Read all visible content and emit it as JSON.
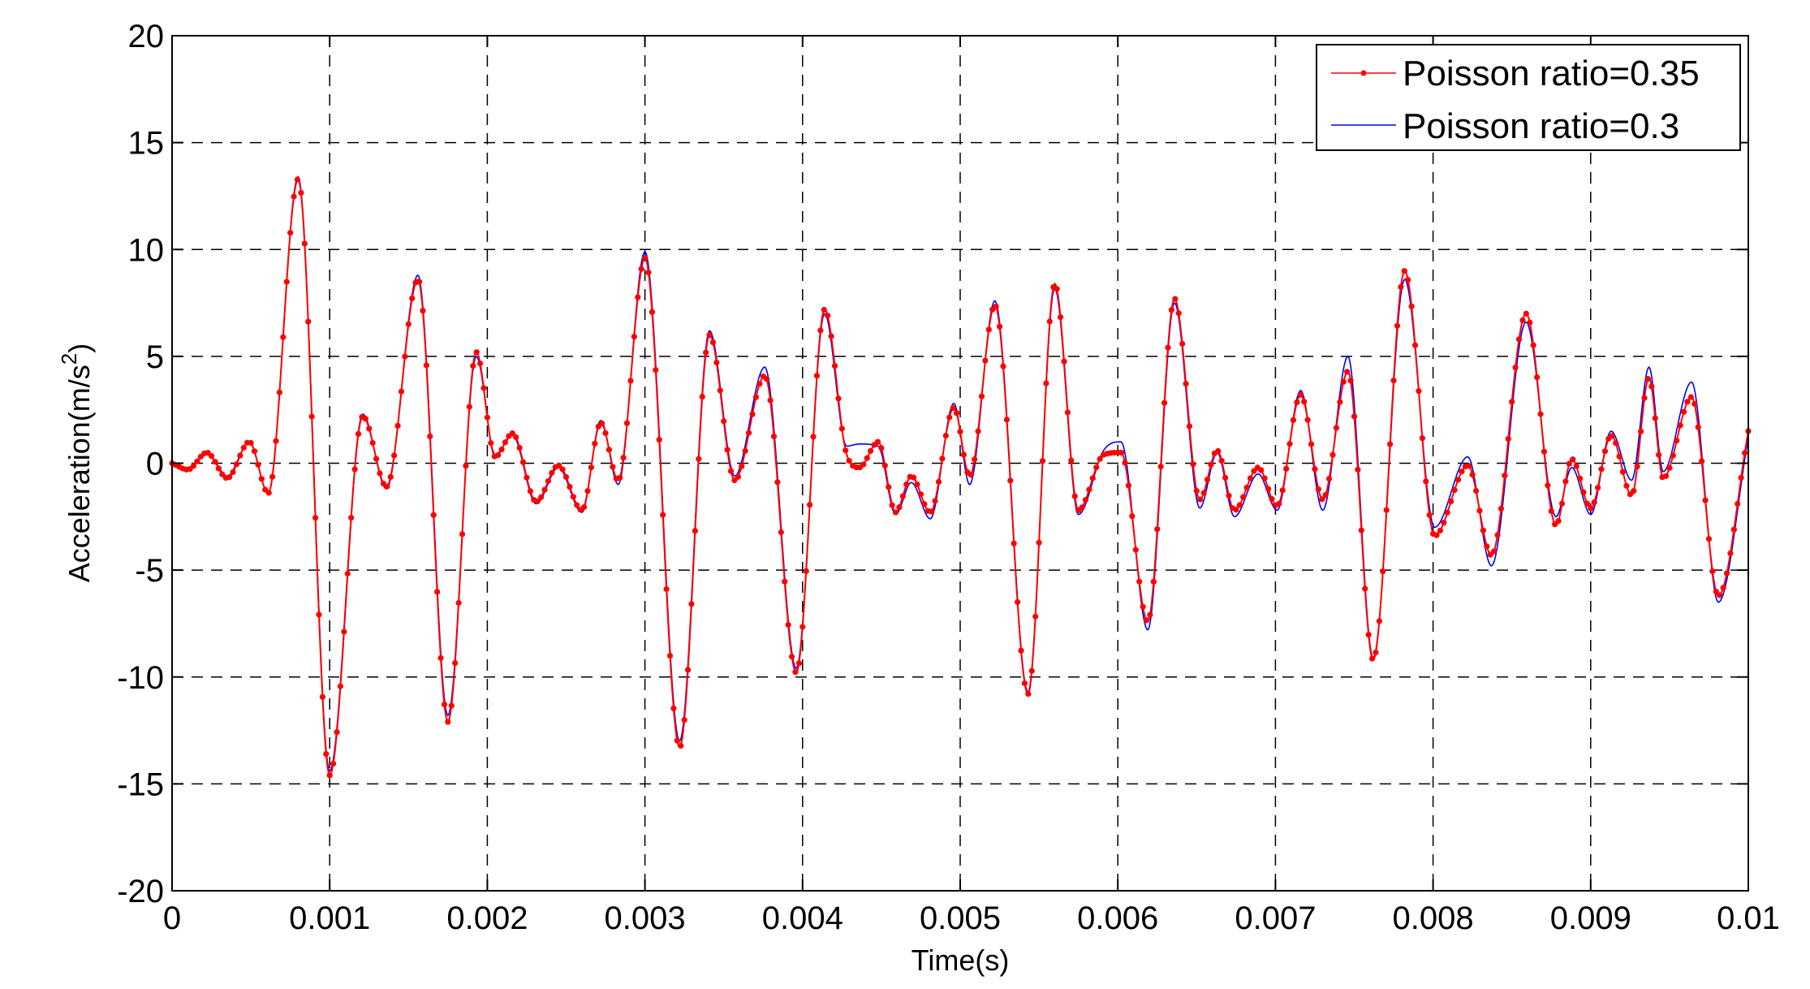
{
  "chart_data": {
    "type": "line",
    "xlabel": "Time(s)",
    "ylabel": "Acceleration(m/s",
    "ylabel_sup": "2",
    "ylabel_close": ")",
    "xlim": [
      0,
      0.01
    ],
    "ylim": [
      -20,
      20
    ],
    "xticks": [
      0,
      0.001,
      0.002,
      0.003,
      0.004,
      0.005,
      0.006,
      0.007,
      0.008,
      0.009,
      0.01
    ],
    "xtick_labels": [
      "0",
      "0.001",
      "0.002",
      "0.003",
      "0.004",
      "0.005",
      "0.006",
      "0.007",
      "0.008",
      "0.009",
      "0.01"
    ],
    "yticks": [
      -20,
      -15,
      -10,
      -5,
      0,
      5,
      10,
      15,
      20
    ],
    "ytick_labels": [
      "-20",
      "-15",
      "-10",
      "-5",
      "0",
      "5",
      "10",
      "15",
      "20"
    ],
    "grid": true,
    "legend_position": "top-right",
    "series": [
      {
        "name": "Poisson ratio=0.35",
        "color": "#ff0000",
        "marker": "dot",
        "x": [
          0,
          0.0001,
          0.00022,
          0.00035,
          0.00049,
          0.00061,
          0.0008,
          0.001,
          0.00121,
          0.00136,
          0.00156,
          0.00175,
          0.00193,
          0.00205,
          0.00216,
          0.00231,
          0.00245,
          0.0026,
          0.00272,
          0.00283,
          0.003,
          0.00322,
          0.00341,
          0.00357,
          0.00376,
          0.00396,
          0.00414,
          0.00428,
          0.00436,
          0.00448,
          0.00459,
          0.00469,
          0.00481,
          0.00496,
          0.00506,
          0.00522,
          0.00543,
          0.0056,
          0.00575,
          0.00591,
          0.00602,
          0.00619,
          0.00636,
          0.00652,
          0.00663,
          0.00674,
          0.00689,
          0.00701,
          0.00716,
          0.0073,
          0.00746,
          0.00762,
          0.00782,
          0.00801,
          0.00822,
          0.00837,
          0.00859,
          0.00878,
          0.00888,
          0.009,
          0.00913,
          0.00926,
          0.00937,
          0.00946,
          0.00964,
          0.00981,
          0.01
        ],
        "y": [
          0,
          -0.3,
          0.5,
          -0.7,
          1.0,
          -1.4,
          13.3,
          -14.6,
          2.2,
          -1.1,
          8.6,
          -12.1,
          5.2,
          0.3,
          1.4,
          -1.8,
          -0.1,
          -2.2,
          1.9,
          -0.8,
          9.6,
          -13.3,
          6.0,
          -0.8,
          4.1,
          -9.8,
          7.2,
          0.4,
          -0.2,
          1.0,
          -2.3,
          -0.6,
          -2.3,
          2.6,
          -0.6,
          7.4,
          -10.8,
          8.4,
          -2.2,
          0.4,
          0.5,
          -7.4,
          7.7,
          -1.7,
          0.6,
          -2.2,
          -0.2,
          -2.0,
          3.2,
          -1.7,
          4.3,
          -9.2,
          9.0,
          -3.4,
          -0.1,
          -4.3,
          7.0,
          -2.9,
          0.2,
          -2.1,
          1.3,
          -1.5,
          4.0,
          -0.7,
          3.1,
          -6.2,
          1.5
        ]
      },
      {
        "name": "Poisson ratio=0.3",
        "color": "#0000ff",
        "marker": "none",
        "x": [
          0,
          0.0001,
          0.00022,
          0.00035,
          0.00049,
          0.00061,
          0.0008,
          0.001,
          0.00121,
          0.00136,
          0.00156,
          0.00175,
          0.00193,
          0.00205,
          0.00216,
          0.00231,
          0.00245,
          0.0026,
          0.00272,
          0.00283,
          0.003,
          0.00322,
          0.00341,
          0.00357,
          0.00376,
          0.00396,
          0.00414,
          0.00428,
          0.00436,
          0.00448,
          0.00459,
          0.00469,
          0.00481,
          0.00496,
          0.00506,
          0.00522,
          0.00543,
          0.0056,
          0.00575,
          0.00591,
          0.00602,
          0.00619,
          0.00636,
          0.00652,
          0.00663,
          0.00674,
          0.00689,
          0.00701,
          0.00716,
          0.0073,
          0.00746,
          0.00762,
          0.00782,
          0.00801,
          0.00822,
          0.00837,
          0.00859,
          0.00878,
          0.00888,
          0.009,
          0.00913,
          0.00926,
          0.00937,
          0.00946,
          0.00964,
          0.00981,
          0.01
        ],
        "y": [
          0,
          -0.3,
          0.5,
          -0.6,
          1.0,
          -1.4,
          13.4,
          -14.4,
          2.3,
          -1.2,
          8.8,
          -11.8,
          5.0,
          0.4,
          1.3,
          -1.9,
          -0.2,
          -2.3,
          2.0,
          -1.0,
          9.9,
          -13.0,
          6.2,
          -0.6,
          4.5,
          -9.6,
          7.0,
          0.8,
          0.9,
          0.8,
          -2.4,
          -0.9,
          -2.6,
          2.8,
          -1.0,
          7.6,
          -10.7,
          8.2,
          -2.4,
          0.6,
          1.0,
          -7.8,
          7.5,
          -2.1,
          0.5,
          -2.5,
          -0.5,
          -2.2,
          3.4,
          -2.2,
          5.0,
          -9.1,
          8.6,
          -3.0,
          0.3,
          -4.8,
          6.6,
          -2.5,
          -0.2,
          -2.4,
          1.5,
          -0.8,
          4.5,
          -0.4,
          3.8,
          -6.5,
          1.2
        ]
      }
    ]
  }
}
